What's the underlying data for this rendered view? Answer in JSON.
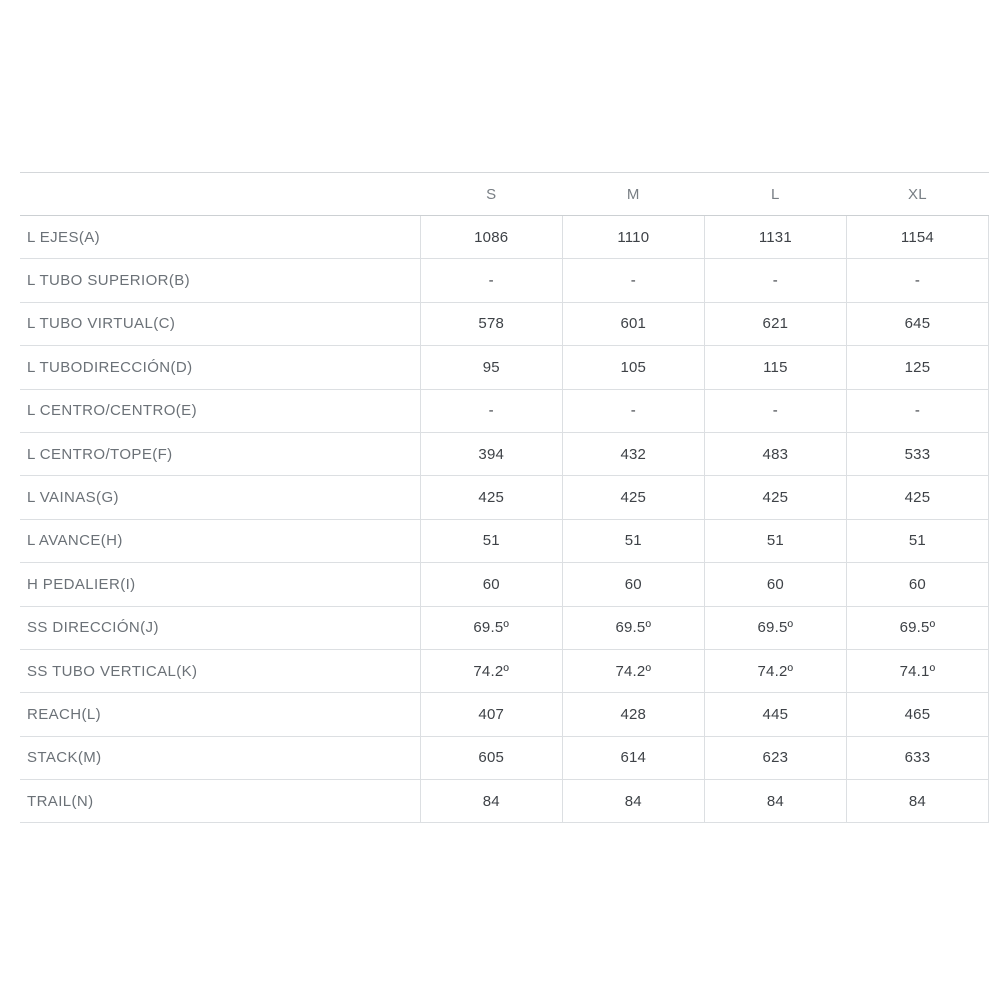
{
  "table": {
    "columns": [
      "S",
      "M",
      "L",
      "XL"
    ],
    "rows": [
      {
        "label": "L EJES(A)",
        "values": [
          "1086",
          "1110",
          "1131",
          "1154"
        ]
      },
      {
        "label": "L TUBO SUPERIOR(B)",
        "values": [
          "-",
          "-",
          "-",
          "-"
        ]
      },
      {
        "label": "L TUBO VIRTUAL(C)",
        "values": [
          "578",
          "601",
          "621",
          "645"
        ]
      },
      {
        "label": "L TUBODIRECCIÓN(D)",
        "values": [
          "95",
          "105",
          "115",
          "125"
        ]
      },
      {
        "label": "L CENTRO/CENTRO(E)",
        "values": [
          "-",
          "-",
          "-",
          "-"
        ]
      },
      {
        "label": "L CENTRO/TOPE(F)",
        "values": [
          "394",
          "432",
          "483",
          "533"
        ]
      },
      {
        "label": "L VAINAS(G)",
        "values": [
          "425",
          "425",
          "425",
          "425"
        ]
      },
      {
        "label": "L AVANCE(H)",
        "values": [
          "51",
          "51",
          "51",
          "51"
        ]
      },
      {
        "label": "H PEDALIER(I)",
        "values": [
          "60",
          "60",
          "60",
          "60"
        ]
      },
      {
        "label": "SS DIRECCIÓN(J)",
        "values": [
          "69.5º",
          "69.5º",
          "69.5º",
          "69.5º"
        ]
      },
      {
        "label": "SS TUBO VERTICAL(K)",
        "values": [
          "74.2º",
          "74.2º",
          "74.2º",
          "74.1º"
        ]
      },
      {
        "label": "REACH(L)",
        "values": [
          "407",
          "428",
          "445",
          "465"
        ]
      },
      {
        "label": "STACK(M)",
        "values": [
          "605",
          "614",
          "623",
          "633"
        ]
      },
      {
        "label": "TRAIL(N)",
        "values": [
          "84",
          "84",
          "84",
          "84"
        ]
      }
    ]
  },
  "colors": {
    "background": "#ffffff",
    "header_text": "#787e84",
    "label_text": "#6b7177",
    "value_text": "#3e4247",
    "border": "#dcdfe2",
    "header_border": "#ccd0d3"
  }
}
